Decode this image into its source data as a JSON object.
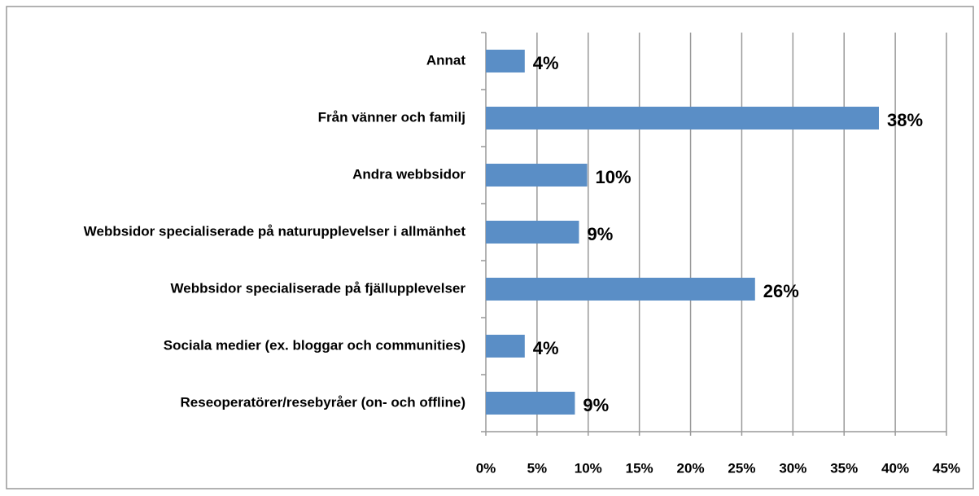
{
  "chart_data": {
    "type": "bar",
    "orientation": "horizontal",
    "categories": [
      "Annat",
      "Från vänner och familj",
      "Andra webbsidor",
      "Webbsidor specialiserade på naturupplevelser i allmänhet",
      "Webbsidor specialiserade på fjällupplevelser",
      "Sociala medier (ex. bloggar och communities)",
      "Reseoperatörer/resebyråer (on- och offline)"
    ],
    "values": [
      3.8,
      38.4,
      9.9,
      9.1,
      26.3,
      3.8,
      8.7
    ],
    "value_labels": [
      "4%",
      "38%",
      "10%",
      "9%",
      "26%",
      "4%",
      "9%"
    ],
    "color": "#5a8ec6",
    "xlim": [
      0,
      45
    ],
    "xticks": [
      {
        "value": 0,
        "label": "0%"
      },
      {
        "value": 5,
        "label": "5%"
      },
      {
        "value": 10,
        "label": "10%"
      },
      {
        "value": 15,
        "label": "15%"
      },
      {
        "value": 20,
        "label": "20%"
      },
      {
        "value": 25,
        "label": "25%"
      },
      {
        "value": 30,
        "label": "30%"
      },
      {
        "value": 35,
        "label": "35%"
      },
      {
        "value": 40,
        "label": "40%"
      },
      {
        "value": 45,
        "label": "45%"
      }
    ],
    "grid": true
  }
}
